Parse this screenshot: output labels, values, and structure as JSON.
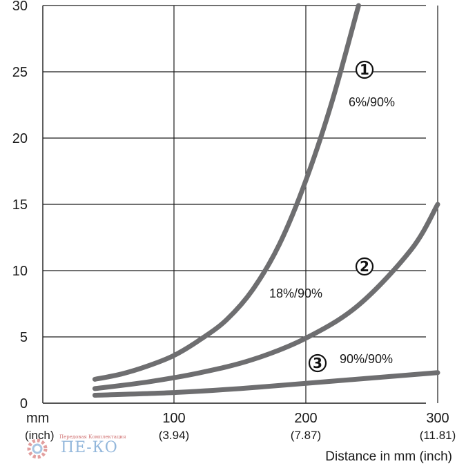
{
  "chart_data": {
    "type": "line",
    "title": "",
    "xlabel": "Distance in mm (inch)",
    "ylabel": "",
    "xlim": [
      -10,
      300
    ],
    "ylim": [
      0,
      30
    ],
    "grid": true,
    "y_ticks": [
      0,
      5,
      10,
      15,
      20,
      25,
      30
    ],
    "x_ticks": [
      {
        "value": 100,
        "label": "100",
        "sublabel": "(3.94)"
      },
      {
        "value": 200,
        "label": "200",
        "sublabel": "(7.87)"
      },
      {
        "value": 300,
        "label": "300",
        "sublabel": "(11.81)"
      }
    ],
    "x_unit_label": "mm",
    "x_unit_sublabel": "(inch)",
    "series": [
      {
        "name": "6%/90%",
        "marker": "1",
        "x": [
          40,
          60,
          80,
          100,
          120,
          140,
          160,
          180,
          200,
          220,
          240
        ],
        "y": [
          1.8,
          2.2,
          2.8,
          3.6,
          4.8,
          6.3,
          8.6,
          12.0,
          16.8,
          22.8,
          30.0
        ]
      },
      {
        "name": "18%/90%",
        "marker": "2",
        "x": [
          40,
          80,
          120,
          160,
          200,
          240,
          280,
          300
        ],
        "y": [
          1.1,
          1.6,
          2.3,
          3.3,
          4.9,
          7.4,
          11.6,
          15.0
        ]
      },
      {
        "name": "90%/90%",
        "marker": "3",
        "x": [
          40,
          100,
          150,
          200,
          250,
          300
        ],
        "y": [
          0.6,
          0.8,
          1.1,
          1.5,
          1.9,
          2.3
        ]
      }
    ]
  },
  "colors": {
    "curve": "#6e6e70",
    "grid": "#1a1a1a",
    "axis": "#1a1a1a"
  },
  "watermark": {
    "small_text": "Передовая Комплектация",
    "big_text": "ПЕ-КО"
  }
}
